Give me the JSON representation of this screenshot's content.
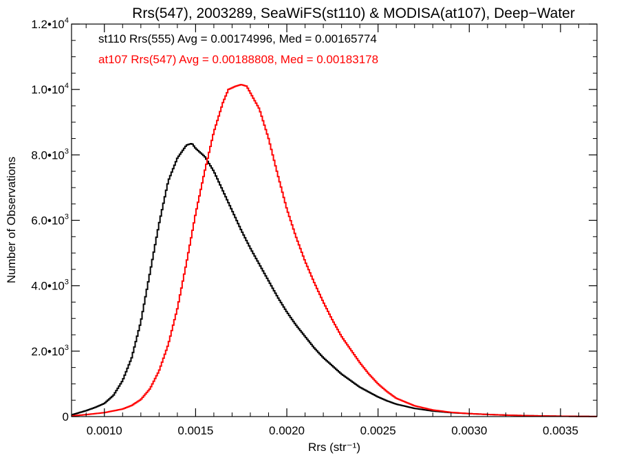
{
  "chart_data": {
    "type": "line",
    "step": true,
    "title": "Rrs(547), 2003289, SeaWiFS(st110) & MODISA(at107), Deep−Water",
    "xlabel": "Rrs (str⁻¹)",
    "ylabel": "Number of Observations",
    "xlim": [
      0.00082,
      0.0037
    ],
    "ylim": [
      0,
      12000
    ],
    "x_ticks": [
      {
        "value": 0.001,
        "label": "0.0010"
      },
      {
        "value": 0.0015,
        "label": "0.0015"
      },
      {
        "value": 0.002,
        "label": "0.0020"
      },
      {
        "value": 0.0025,
        "label": "0.0025"
      },
      {
        "value": 0.003,
        "label": "0.0030"
      },
      {
        "value": 0.0035,
        "label": "0.0035"
      }
    ],
    "y_ticks": [
      {
        "value": 0,
        "mantissa": "0",
        "exponent": ""
      },
      {
        "value": 2000,
        "mantissa": "2.0•1",
        "exponent": "3"
      },
      {
        "value": 4000,
        "mantissa": "4.0•1",
        "exponent": "3"
      },
      {
        "value": 6000,
        "mantissa": "6.0•1",
        "exponent": "3"
      },
      {
        "value": 8000,
        "mantissa": "8.0•1",
        "exponent": "3"
      },
      {
        "value": 10000,
        "mantissa": "1.0•1",
        "exponent": "4"
      },
      {
        "value": 12000,
        "mantissa": "1.2•1",
        "exponent": "4"
      }
    ],
    "grid": false,
    "annotations": [
      {
        "text": "st110 Rrs(555) Avg = 0.00174996, Med = 0.00165774",
        "color": "#000000"
      },
      {
        "text": "at107 Rrs(547) Avg = 0.00188808, Med = 0.00183178",
        "color": "#ff0000"
      }
    ],
    "series": [
      {
        "color": "#000000",
        "x": [
          0.00082,
          0.0009,
          0.00095,
          0.001,
          0.00105,
          0.0011,
          0.00115,
          0.0012,
          0.00125,
          0.0013,
          0.00135,
          0.0014,
          0.00145,
          0.00148,
          0.0015,
          0.00155,
          0.0016,
          0.00165,
          0.0017,
          0.00175,
          0.0018,
          0.00185,
          0.0019,
          0.00195,
          0.002,
          0.00205,
          0.0021,
          0.00215,
          0.0022,
          0.00225,
          0.0023,
          0.00235,
          0.0024,
          0.00245,
          0.0025,
          0.00255,
          0.0026,
          0.0027,
          0.0028,
          0.0029,
          0.003,
          0.0031,
          0.0032,
          0.0033,
          0.0034,
          0.0035,
          0.0036,
          0.0037
        ],
        "y": [
          50,
          180,
          280,
          400,
          650,
          1100,
          1800,
          2900,
          4400,
          5900,
          7200,
          7900,
          8300,
          8350,
          8200,
          7950,
          7500,
          6900,
          6300,
          5700,
          5150,
          4650,
          4150,
          3650,
          3200,
          2800,
          2450,
          2100,
          1800,
          1550,
          1300,
          1100,
          900,
          750,
          600,
          480,
          380,
          250,
          170,
          120,
          90,
          65,
          45,
          30,
          20,
          12,
          6,
          2
        ]
      },
      {
        "color": "#ff0000",
        "x": [
          0.00082,
          0.0009,
          0.001,
          0.0011,
          0.00115,
          0.0012,
          0.00125,
          0.0013,
          0.00135,
          0.0014,
          0.00145,
          0.0015,
          0.00155,
          0.0016,
          0.00165,
          0.00168,
          0.00172,
          0.00175,
          0.00178,
          0.0018,
          0.00185,
          0.0019,
          0.00195,
          0.002,
          0.00205,
          0.0021,
          0.00215,
          0.0022,
          0.00225,
          0.0023,
          0.00235,
          0.0024,
          0.00245,
          0.0025,
          0.00255,
          0.0026,
          0.0027,
          0.0028,
          0.0029,
          0.003,
          0.0031,
          0.0032,
          0.0033,
          0.0034,
          0.0035,
          0.0036,
          0.0037
        ],
        "y": [
          20,
          60,
          120,
          230,
          340,
          520,
          850,
          1400,
          2200,
          3300,
          4700,
          6200,
          7500,
          8700,
          9600,
          10000,
          10100,
          10150,
          10100,
          9900,
          9400,
          8500,
          7400,
          6350,
          5500,
          4750,
          4100,
          3500,
          2950,
          2450,
          2050,
          1650,
          1300,
          1000,
          760,
          560,
          330,
          200,
          130,
          90,
          65,
          45,
          30,
          20,
          12,
          6,
          2
        ]
      }
    ]
  }
}
